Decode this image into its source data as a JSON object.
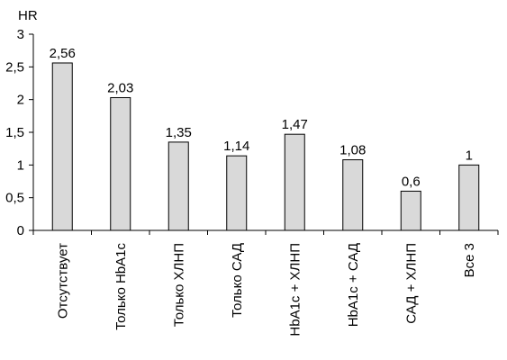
{
  "chart_data": {
    "type": "bar",
    "title": "",
    "xlabel": "",
    "ylabel": "HR",
    "ylim": [
      0,
      3
    ],
    "y_ticks": [
      "0",
      "0,5",
      "1",
      "1,5",
      "2",
      "2,5",
      "3"
    ],
    "y_tick_values": [
      0,
      0.5,
      1,
      1.5,
      2,
      2.5,
      3
    ],
    "categories": [
      "Отсутствует",
      "Только HbA1c",
      "Только ХЛНП",
      "Только САД",
      "HbA1c + ХЛНП",
      "HbA1c + САД",
      "САД + ХЛНП",
      "Все 3"
    ],
    "values": [
      2.56,
      2.03,
      1.35,
      1.14,
      1.47,
      1.08,
      0.6,
      1
    ],
    "value_labels": [
      "2,56",
      "2,03",
      "1,35",
      "1,14",
      "1,47",
      "1,08",
      "0,6",
      "1"
    ],
    "grid": false,
    "legend": "none",
    "colors": {
      "bar_fill": "#d9d9d9",
      "bar_stroke": "#000000",
      "axis": "#000000"
    }
  }
}
